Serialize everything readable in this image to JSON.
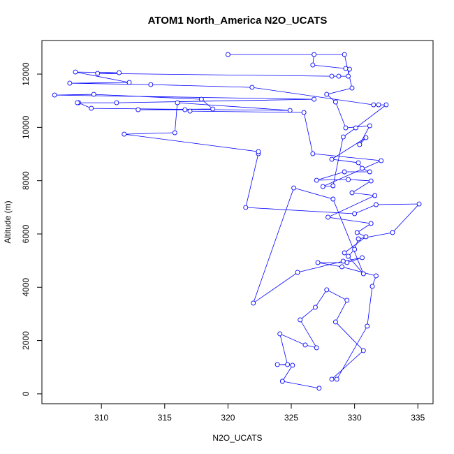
{
  "chart_data": {
    "type": "line",
    "title": "ATOM1 North_America N2O_UCATS",
    "xlabel": "N2O_UCATS",
    "ylabel": "Altitude (m)",
    "color": "#0000ff",
    "markers": true,
    "x": [
      327.2,
      324.3,
      325.1,
      323.9,
      324.7,
      324.1,
      326.1,
      327.0,
      325.7,
      326.9,
      327.8,
      329.4,
      328.5,
      330.7,
      328.2,
      328.6,
      331.0,
      331.4,
      331.7,
      329.0,
      327.1,
      329.4,
      330.6,
      329.1,
      325.5,
      322.0,
      325.2,
      328.3,
      330.7,
      329.5,
      330.0,
      330.3,
      333.0,
      335.1,
      331.7,
      330.0,
      321.4,
      322.4,
      322.4,
      311.8,
      315.8,
      316.0,
      324.9,
      309.2,
      308.2,
      308.1,
      311.2,
      326.8,
      306.3,
      309.4,
      317.9,
      318.8,
      312.9,
      316.6,
      317.0,
      326.0,
      326.7,
      332.1,
      327.5,
      328.3,
      329.1,
      330.1,
      332.5,
      331.9,
      331.5,
      321.9,
      313.9,
      307.5,
      312.2,
      307.95,
      311.4,
      309.7,
      328.2,
      328.75,
      329.5,
      329.6,
      329.3,
      326.7,
      326.8,
      320.0,
      329.2,
      329.8,
      327.8,
      328.5,
      329.3,
      331.2,
      330.4,
      330.9,
      328.2,
      330.3,
      330.6,
      331.2,
      329.2,
      327.0,
      329.5,
      331.3,
      329.8,
      331.6,
      327.9,
      331.3,
      330.2,
      330.9,
      329.2
    ],
    "values": [
      210,
      472,
      1074,
      1100,
      1100,
      2253,
      1834,
      1729,
      2777,
      3249,
      3904,
      3511,
      2699,
      1624,
      550,
      550,
      2541,
      4035,
      4428,
      4768,
      4926,
      4926,
      5109,
      4978,
      4559,
      3406,
      7729,
      7310,
      4506,
      5161,
      5423,
      5816,
      6052,
      7126,
      7100,
      6760,
      6995,
      9013,
      9091,
      9746,
      9799,
      10925,
      10637,
      10716,
      10925,
      10925,
      10925,
      11056,
      11214,
      11240,
      11056,
      10690,
      10663,
      10663,
      10611,
      10559,
      9013,
      8751,
      7781,
      7808,
      9642,
      9982,
      10847,
      10847,
      10847,
      11502,
      11607,
      11659,
      11685,
      12078,
      12052,
      12026,
      11921,
      11921,
      11921,
      12183,
      12209,
      12340,
      12733,
      12733,
      12733,
      11476,
      11240,
      10952,
      9982,
      10061,
      9353,
      9615,
      8803,
      8672,
      8463,
      8332,
      8332,
      8017,
      8043,
      7991,
      7546,
      7441,
      6629,
      6393,
      6052,
      5895,
      5292
    ],
    "xlim": [
      305.3,
      336.2
    ],
    "ylim": [
      -370,
      13260
    ],
    "xticks": [
      310,
      315,
      320,
      325,
      330,
      335
    ],
    "yticks": [
      0,
      2000,
      4000,
      6000,
      8000,
      10000,
      12000
    ]
  }
}
